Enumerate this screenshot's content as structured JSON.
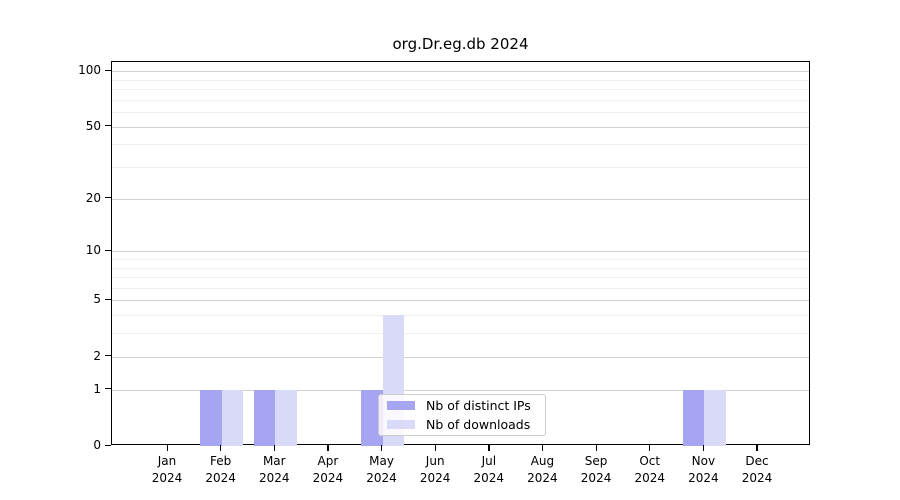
{
  "chart_data": {
    "type": "bar",
    "title": "org.Dr.eg.db 2024",
    "year": "2024",
    "categories": [
      "Jan",
      "Feb",
      "Mar",
      "Apr",
      "May",
      "Jun",
      "Jul",
      "Aug",
      "Sep",
      "Oct",
      "Nov",
      "Dec"
    ],
    "series": [
      {
        "name": "Nb of distinct IPs",
        "color": "#a5a5f2",
        "values": [
          0,
          1,
          1,
          0,
          1,
          0,
          0,
          0,
          0,
          0,
          1,
          0
        ]
      },
      {
        "name": "Nb of downloads",
        "color": "#d9d9f8",
        "values": [
          0,
          1,
          1,
          0,
          4,
          0,
          0,
          0,
          0,
          0,
          1,
          0
        ]
      }
    ],
    "yscale": "log1p",
    "ylim": [
      0,
      112
    ],
    "y_ticks": [
      100,
      50,
      20,
      10,
      5,
      2,
      1,
      0
    ],
    "y_minor_ticks": [
      3,
      4,
      6,
      7,
      8,
      9,
      30,
      40,
      60,
      70,
      80,
      90
    ],
    "grid": true,
    "legend_position": "inside lower-center"
  },
  "colors": {
    "major_grid": "#d0d0d0",
    "minor_grid": "#efefef",
    "axis": "#000000",
    "legend_border": "#cccccc"
  }
}
